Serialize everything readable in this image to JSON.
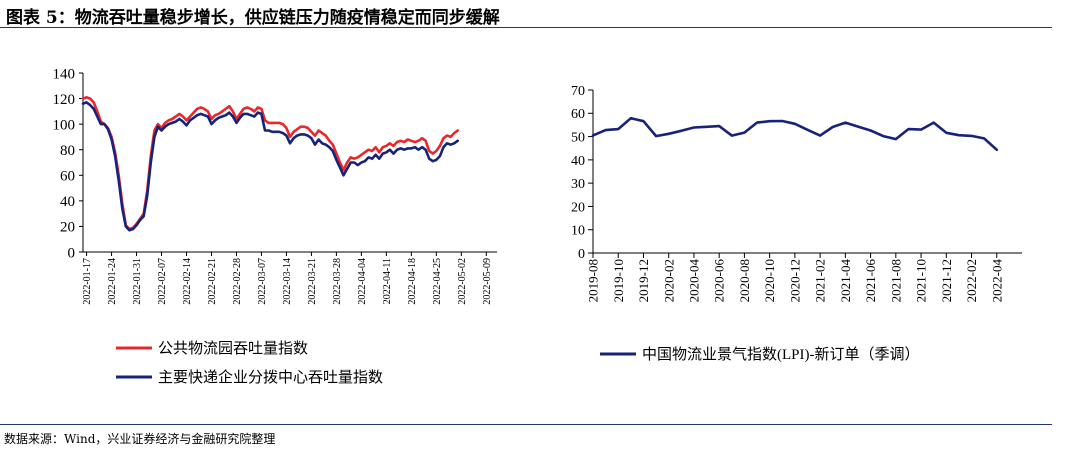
{
  "title": "图表 5：物流吞吐量稳步增长，供应链压力随疫情稳定而同步缓解",
  "source": "数据来源：Wind，兴业证券经济与金融研究院整理",
  "colors": {
    "red": "#e8282b",
    "navy": "#17237a",
    "rule": "#1f3a68"
  },
  "chart_data": [
    {
      "type": "line",
      "ylim": [
        0,
        140
      ],
      "yticks": [
        0,
        20,
        40,
        60,
        80,
        100,
        120,
        140
      ],
      "xlim": [
        0,
        116
      ],
      "xticks": [
        {
          "label": "2022-01-17",
          "x": 1
        },
        {
          "label": "2022-01-24",
          "x": 8
        },
        {
          "label": "2022-01-31",
          "x": 15
        },
        {
          "label": "2022-02-07",
          "x": 22
        },
        {
          "label": "2022-02-14",
          "x": 29
        },
        {
          "label": "2022-02-21",
          "x": 36
        },
        {
          "label": "2022-02-28",
          "x": 43
        },
        {
          "label": "2022-03-07",
          "x": 50
        },
        {
          "label": "2022-03-14",
          "x": 57
        },
        {
          "label": "2022-03-21",
          "x": 64
        },
        {
          "label": "2022-03-28",
          "x": 71
        },
        {
          "label": "2022-04-04",
          "x": 78
        },
        {
          "label": "2022-04-11",
          "x": 85
        },
        {
          "label": "2022-04-18",
          "x": 92
        },
        {
          "label": "2022-04-25",
          "x": 99
        },
        {
          "label": "2022-05-02",
          "x": 106
        },
        {
          "label": "2022-05-09",
          "x": 113
        }
      ],
      "series": [
        {
          "name": "公共物流园吞吐量指数",
          "color": "#e8282b",
          "points": [
            [
              0,
              120
            ],
            [
              1,
              121
            ],
            [
              2,
              120
            ],
            [
              3,
              117
            ],
            [
              4,
              110
            ],
            [
              5,
              102
            ],
            [
              6,
              100
            ],
            [
              7,
              97
            ],
            [
              8,
              90
            ],
            [
              9,
              78
            ],
            [
              10,
              60
            ],
            [
              11,
              38
            ],
            [
              12,
              21
            ],
            [
              13,
              18
            ],
            [
              14,
              19
            ],
            [
              15,
              22
            ],
            [
              16,
              26
            ],
            [
              17,
              30
            ],
            [
              18,
              48
            ],
            [
              19,
              75
            ],
            [
              20,
              95
            ],
            [
              21,
              100
            ],
            [
              22,
              97
            ],
            [
              23,
              101
            ],
            [
              24,
              103
            ],
            [
              25,
              104
            ],
            [
              26,
              106
            ],
            [
              27,
              108
            ],
            [
              28,
              106
            ],
            [
              29,
              103
            ],
            [
              30,
              106
            ],
            [
              31,
              109
            ],
            [
              32,
              112
            ],
            [
              33,
              113
            ],
            [
              34,
              112
            ],
            [
              35,
              110
            ],
            [
              36,
              104
            ],
            [
              37,
              107
            ],
            [
              38,
              108
            ],
            [
              39,
              110
            ],
            [
              40,
              112
            ],
            [
              41,
              114
            ],
            [
              42,
              110
            ],
            [
              43,
              104
            ],
            [
              44,
              108
            ],
            [
              45,
              112
            ],
            [
              46,
              113
            ],
            [
              47,
              112
            ],
            [
              48,
              110
            ],
            [
              49,
              113
            ],
            [
              50,
              112
            ],
            [
              51,
              103
            ],
            [
              52,
              101
            ],
            [
              53,
              101
            ],
            [
              54,
              101
            ],
            [
              55,
              101
            ],
            [
              56,
              100
            ],
            [
              57,
              97
            ],
            [
              58,
              90
            ],
            [
              59,
              94
            ],
            [
              60,
              96
            ],
            [
              61,
              98
            ],
            [
              62,
              98
            ],
            [
              63,
              97
            ],
            [
              64,
              94
            ],
            [
              65,
              91
            ],
            [
              66,
              95
            ],
            [
              67,
              93
            ],
            [
              68,
              91
            ],
            [
              69,
              87
            ],
            [
              70,
              84
            ],
            [
              71,
              77
            ],
            [
              72,
              70
            ],
            [
              73,
              64
            ],
            [
              74,
              70
            ],
            [
              75,
              74
            ],
            [
              76,
              73
            ],
            [
              77,
              74
            ],
            [
              78,
              76
            ],
            [
              79,
              78
            ],
            [
              80,
              80
            ],
            [
              81,
              79
            ],
            [
              82,
              82
            ],
            [
              83,
              78
            ],
            [
              84,
              82
            ],
            [
              85,
              83
            ],
            [
              86,
              85
            ],
            [
              87,
              83
            ],
            [
              88,
              86
            ],
            [
              89,
              87
            ],
            [
              90,
              86
            ],
            [
              91,
              88
            ],
            [
              92,
              87
            ],
            [
              93,
              86
            ],
            [
              94,
              87
            ],
            [
              95,
              89
            ],
            [
              96,
              87
            ],
            [
              97,
              79
            ],
            [
              98,
              77
            ],
            [
              99,
              79
            ],
            [
              100,
              83
            ],
            [
              101,
              89
            ],
            [
              102,
              91
            ],
            [
              103,
              90
            ],
            [
              104,
              93
            ],
            [
              105,
              95
            ]
          ]
        },
        {
          "name": "主要快递企业分拨中心吞吐量指数",
          "color": "#17237a",
          "points": [
            [
              0,
              116
            ],
            [
              1,
              117
            ],
            [
              2,
              115
            ],
            [
              3,
              112
            ],
            [
              4,
              106
            ],
            [
              5,
              100
            ],
            [
              6,
              100
            ],
            [
              7,
              96
            ],
            [
              8,
              88
            ],
            [
              9,
              75
            ],
            [
              10,
              56
            ],
            [
              11,
              34
            ],
            [
              12,
              20
            ],
            [
              13,
              17
            ],
            [
              14,
              18
            ],
            [
              15,
              21
            ],
            [
              16,
              25
            ],
            [
              17,
              28
            ],
            [
              18,
              44
            ],
            [
              19,
              70
            ],
            [
              20,
              90
            ],
            [
              21,
              98
            ],
            [
              22,
              95
            ],
            [
              23,
              98
            ],
            [
              24,
              100
            ],
            [
              25,
              101
            ],
            [
              26,
              102
            ],
            [
              27,
              104
            ],
            [
              28,
              102
            ],
            [
              29,
              99
            ],
            [
              30,
              103
            ],
            [
              31,
              105
            ],
            [
              32,
              107
            ],
            [
              33,
              108
            ],
            [
              34,
              107
            ],
            [
              35,
              106
            ],
            [
              36,
              100
            ],
            [
              37,
              103
            ],
            [
              38,
              105
            ],
            [
              39,
              106
            ],
            [
              40,
              107
            ],
            [
              41,
              109
            ],
            [
              42,
              106
            ],
            [
              43,
              101
            ],
            [
              44,
              105
            ],
            [
              45,
              108
            ],
            [
              46,
              108
            ],
            [
              47,
              107
            ],
            [
              48,
              106
            ],
            [
              49,
              109
            ],
            [
              50,
              108
            ],
            [
              51,
              95
            ],
            [
              52,
              95
            ],
            [
              53,
              94
            ],
            [
              54,
              94
            ],
            [
              55,
              94
            ],
            [
              56,
              93
            ],
            [
              57,
              91
            ],
            [
              58,
              85
            ],
            [
              59,
              89
            ],
            [
              60,
              91
            ],
            [
              61,
              92
            ],
            [
              62,
              92
            ],
            [
              63,
              91
            ],
            [
              64,
              89
            ],
            [
              65,
              84
            ],
            [
              66,
              88
            ],
            [
              67,
              85
            ],
            [
              68,
              84
            ],
            [
              69,
              82
            ],
            [
              70,
              79
            ],
            [
              71,
              72
            ],
            [
              72,
              66
            ],
            [
              73,
              60
            ],
            [
              74,
              65
            ],
            [
              75,
              70
            ],
            [
              76,
              70
            ],
            [
              77,
              68
            ],
            [
              78,
              70
            ],
            [
              79,
              71
            ],
            [
              80,
              74
            ],
            [
              81,
              73
            ],
            [
              82,
              76
            ],
            [
              83,
              73
            ],
            [
              84,
              77
            ],
            [
              85,
              78
            ],
            [
              86,
              80
            ],
            [
              87,
              77
            ],
            [
              88,
              80
            ],
            [
              89,
              81
            ],
            [
              90,
              80
            ],
            [
              91,
              81
            ],
            [
              92,
              81
            ],
            [
              93,
              82
            ],
            [
              94,
              80
            ],
            [
              95,
              82
            ],
            [
              96,
              80
            ],
            [
              97,
              73
            ],
            [
              98,
              71
            ],
            [
              99,
              72
            ],
            [
              100,
              75
            ],
            [
              101,
              82
            ],
            [
              102,
              85
            ],
            [
              103,
              84
            ],
            [
              104,
              85
            ],
            [
              105,
              87
            ]
          ]
        }
      ],
      "legend": "bottom"
    },
    {
      "type": "line",
      "ylim": [
        0,
        70
      ],
      "yticks": [
        0,
        10,
        20,
        30,
        40,
        50,
        60,
        70
      ],
      "xlim": [
        0,
        34
      ],
      "xticks": [
        {
          "label": "2019-08",
          "x": 0
        },
        {
          "label": "2019-10",
          "x": 2
        },
        {
          "label": "2019-12",
          "x": 4
        },
        {
          "label": "2020-02",
          "x": 6
        },
        {
          "label": "2020-04",
          "x": 8
        },
        {
          "label": "2020-06",
          "x": 10
        },
        {
          "label": "2020-08",
          "x": 12
        },
        {
          "label": "2020-10",
          "x": 14
        },
        {
          "label": "2020-12",
          "x": 16
        },
        {
          "label": "2021-02",
          "x": 18
        },
        {
          "label": "2021-04",
          "x": 20
        },
        {
          "label": "2021-06",
          "x": 22
        },
        {
          "label": "2021-08",
          "x": 24
        },
        {
          "label": "2021-10",
          "x": 26
        },
        {
          "label": "2021-12",
          "x": 28
        },
        {
          "label": "2022-02",
          "x": 30
        },
        {
          "label": "2022-04",
          "x": 32
        }
      ],
      "series": [
        {
          "name": "中国物流业景气指数(LPI)-新订单（季调）",
          "color": "#17237a",
          "points": [
            [
              0,
              50.5
            ],
            [
              1,
              52.8
            ],
            [
              2,
              53.2
            ],
            [
              3,
              57.9
            ],
            [
              4,
              56.6
            ],
            [
              5,
              50.2
            ],
            [
              6,
              51.2
            ],
            [
              7,
              52.5
            ],
            [
              8,
              53.9
            ],
            [
              9,
              54.2
            ],
            [
              10,
              54.5
            ],
            [
              11,
              50.4
            ],
            [
              12,
              51.7
            ],
            [
              13,
              56.0
            ],
            [
              14,
              56.6
            ],
            [
              15,
              56.7
            ],
            [
              16,
              55.5
            ],
            [
              17,
              52.9
            ],
            [
              18,
              50.4
            ],
            [
              19,
              54.1
            ],
            [
              20,
              56.0
            ],
            [
              21,
              54.3
            ],
            [
              22,
              52.6
            ],
            [
              23,
              50.2
            ],
            [
              24,
              48.9
            ],
            [
              25,
              53.2
            ],
            [
              26,
              53.0
            ],
            [
              27,
              56.0
            ],
            [
              28,
              51.6
            ],
            [
              29,
              50.6
            ],
            [
              30,
              50.3
            ],
            [
              31,
              49.2
            ],
            [
              32,
              44.3
            ]
          ]
        }
      ],
      "legend": "bottom"
    }
  ]
}
